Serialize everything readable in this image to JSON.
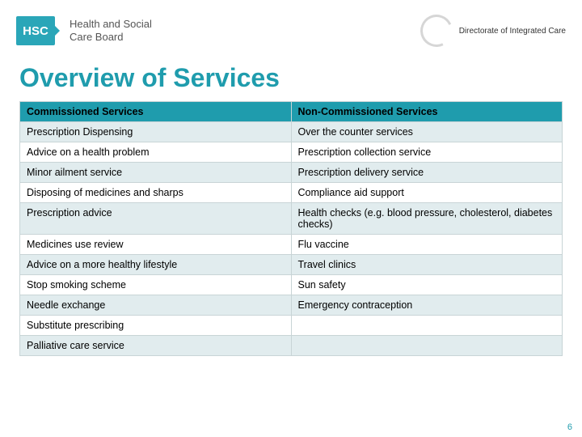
{
  "header": {
    "badge_text": "HSC",
    "org_line1": "Health and Social",
    "org_line2": "Care Board",
    "directorate": "Directorate of Integrated Care"
  },
  "title": "Overview of Services",
  "table": {
    "header_bg": "#1f9cad",
    "row_alt_bg": "#e1ecee",
    "border_color": "#c8d4d6",
    "columns": [
      "Commissioned Services",
      "Non-Commissioned Services"
    ],
    "rows": [
      [
        "Prescription Dispensing",
        "Over the counter services"
      ],
      [
        "Advice on a health problem",
        "Prescription collection service"
      ],
      [
        "Minor ailment service",
        "Prescription delivery service"
      ],
      [
        "Disposing of medicines and sharps",
        "Compliance aid support"
      ],
      [
        "Prescription advice",
        "Health checks (e.g. blood pressure, cholesterol, diabetes checks)"
      ],
      [
        "Medicines use review",
        "Flu vaccine"
      ],
      [
        "Advice on a more healthy lifestyle",
        "Travel clinics"
      ],
      [
        "Stop smoking scheme",
        "Sun safety"
      ],
      [
        "Needle exchange",
        "Emergency contraception"
      ],
      [
        "Substitute prescribing",
        ""
      ],
      [
        "Palliative care service",
        ""
      ]
    ]
  },
  "page_number": "6"
}
